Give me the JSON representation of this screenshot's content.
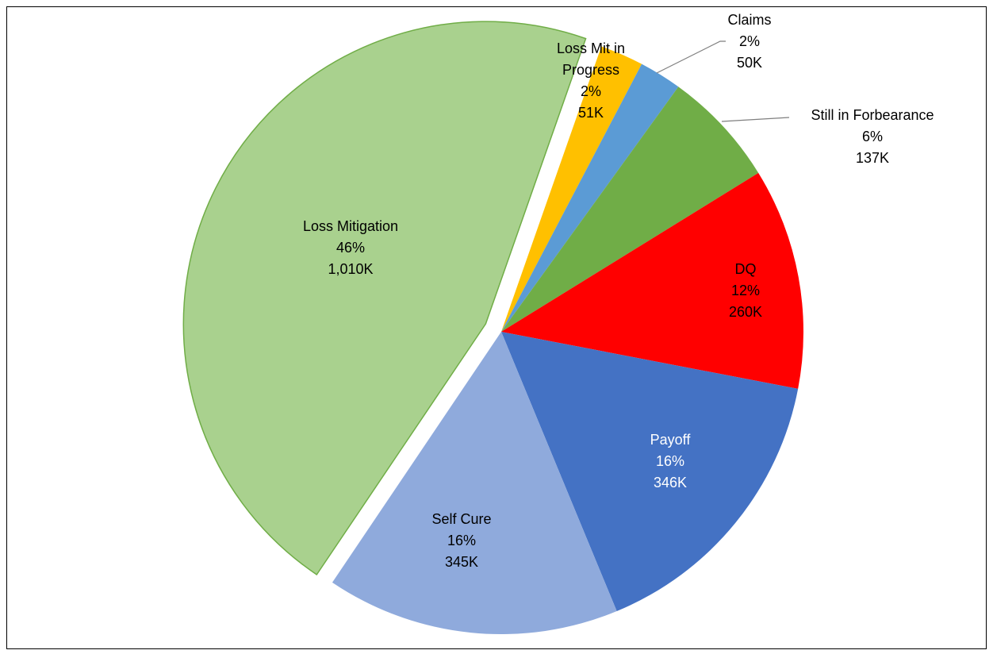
{
  "chart_data": {
    "type": "pie",
    "categories": [
      "Loss Mitigation",
      "Loss Mit in Progress",
      "Claims",
      "Still in Forbearance",
      "DQ",
      "Payoff",
      "Self Cure"
    ],
    "values": [
      1010,
      51,
      50,
      137,
      260,
      346,
      345
    ],
    "value_labels": [
      "1,010K",
      "51K",
      "50K",
      "137K",
      "260K",
      "346K",
      "345K"
    ],
    "percent_labels": [
      "46%",
      "2%",
      "2%",
      "6%",
      "12%",
      "16%",
      "16%"
    ],
    "colors": [
      "#a9d18e",
      "#ffc000",
      "#5b9bd5",
      "#70ad47",
      "#ff0000",
      "#4472c4",
      "#8faadc"
    ],
    "exploded": "Loss Mitigation"
  }
}
